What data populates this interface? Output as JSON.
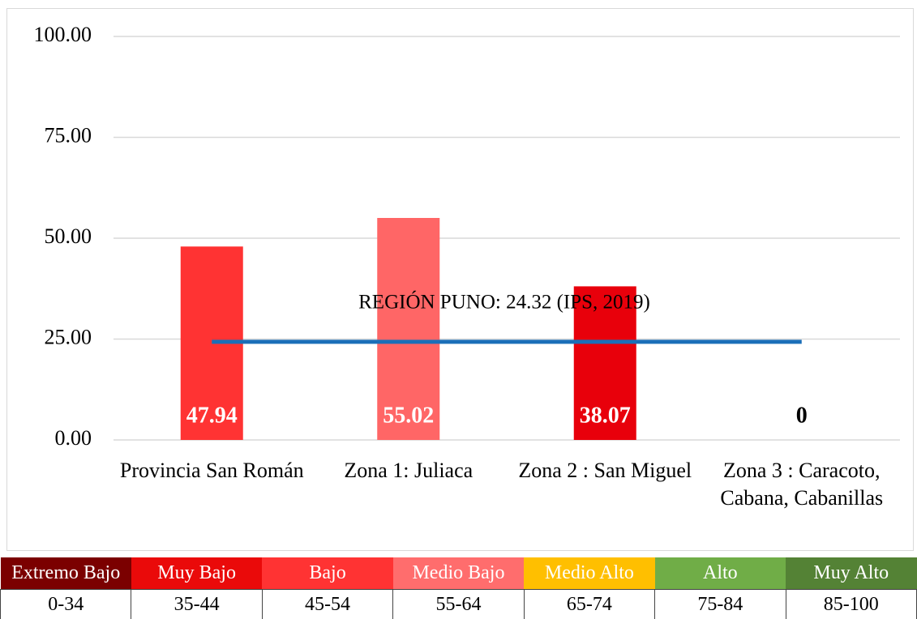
{
  "chart_data": {
    "type": "bar",
    "categories": [
      "Provincia San Román",
      "Zona 1: Juliaca",
      "Zona 2 : San Miguel",
      "Zona 3 : Caracoto, Cabana, Cabanillas"
    ],
    "values": [
      47.94,
      55.02,
      38.07,
      0
    ],
    "colors": [
      "#ff3333",
      "#ff6666",
      "#e8000b",
      "#e8000b"
    ],
    "ylim": [
      0,
      100
    ],
    "yticks": [
      {
        "value": 0,
        "label": "0.00"
      },
      {
        "value": 25,
        "label": "25.00"
      },
      {
        "value": 50,
        "label": "50.00"
      },
      {
        "value": 75,
        "label": "75.00"
      },
      {
        "value": 100,
        "label": "100.00"
      }
    ],
    "grid": true,
    "reference_line": {
      "value": 24.32,
      "label": "REGIÓN PUNO: 24.32 (IPS, 2019)",
      "color": "#1b6fb8"
    }
  },
  "legend_table": [
    {
      "label": "Extremo Bajo",
      "range": "0-34",
      "color": "#7b0000"
    },
    {
      "label": "Muy Bajo",
      "range": "35-44",
      "color": "#ea0a0a"
    },
    {
      "label": "Bajo",
      "range": "45-54",
      "color": "#ff3333"
    },
    {
      "label": "Medio Bajo",
      "range": "55-64",
      "color": "#ff6d6d"
    },
    {
      "label": "Medio Alto",
      "range": "65-74",
      "color": "#ffbf00"
    },
    {
      "label": "Alto",
      "range": "75-84",
      "color": "#70ad47"
    },
    {
      "label": "Muy Alto",
      "range": "85-100",
      "color": "#548235"
    }
  ]
}
